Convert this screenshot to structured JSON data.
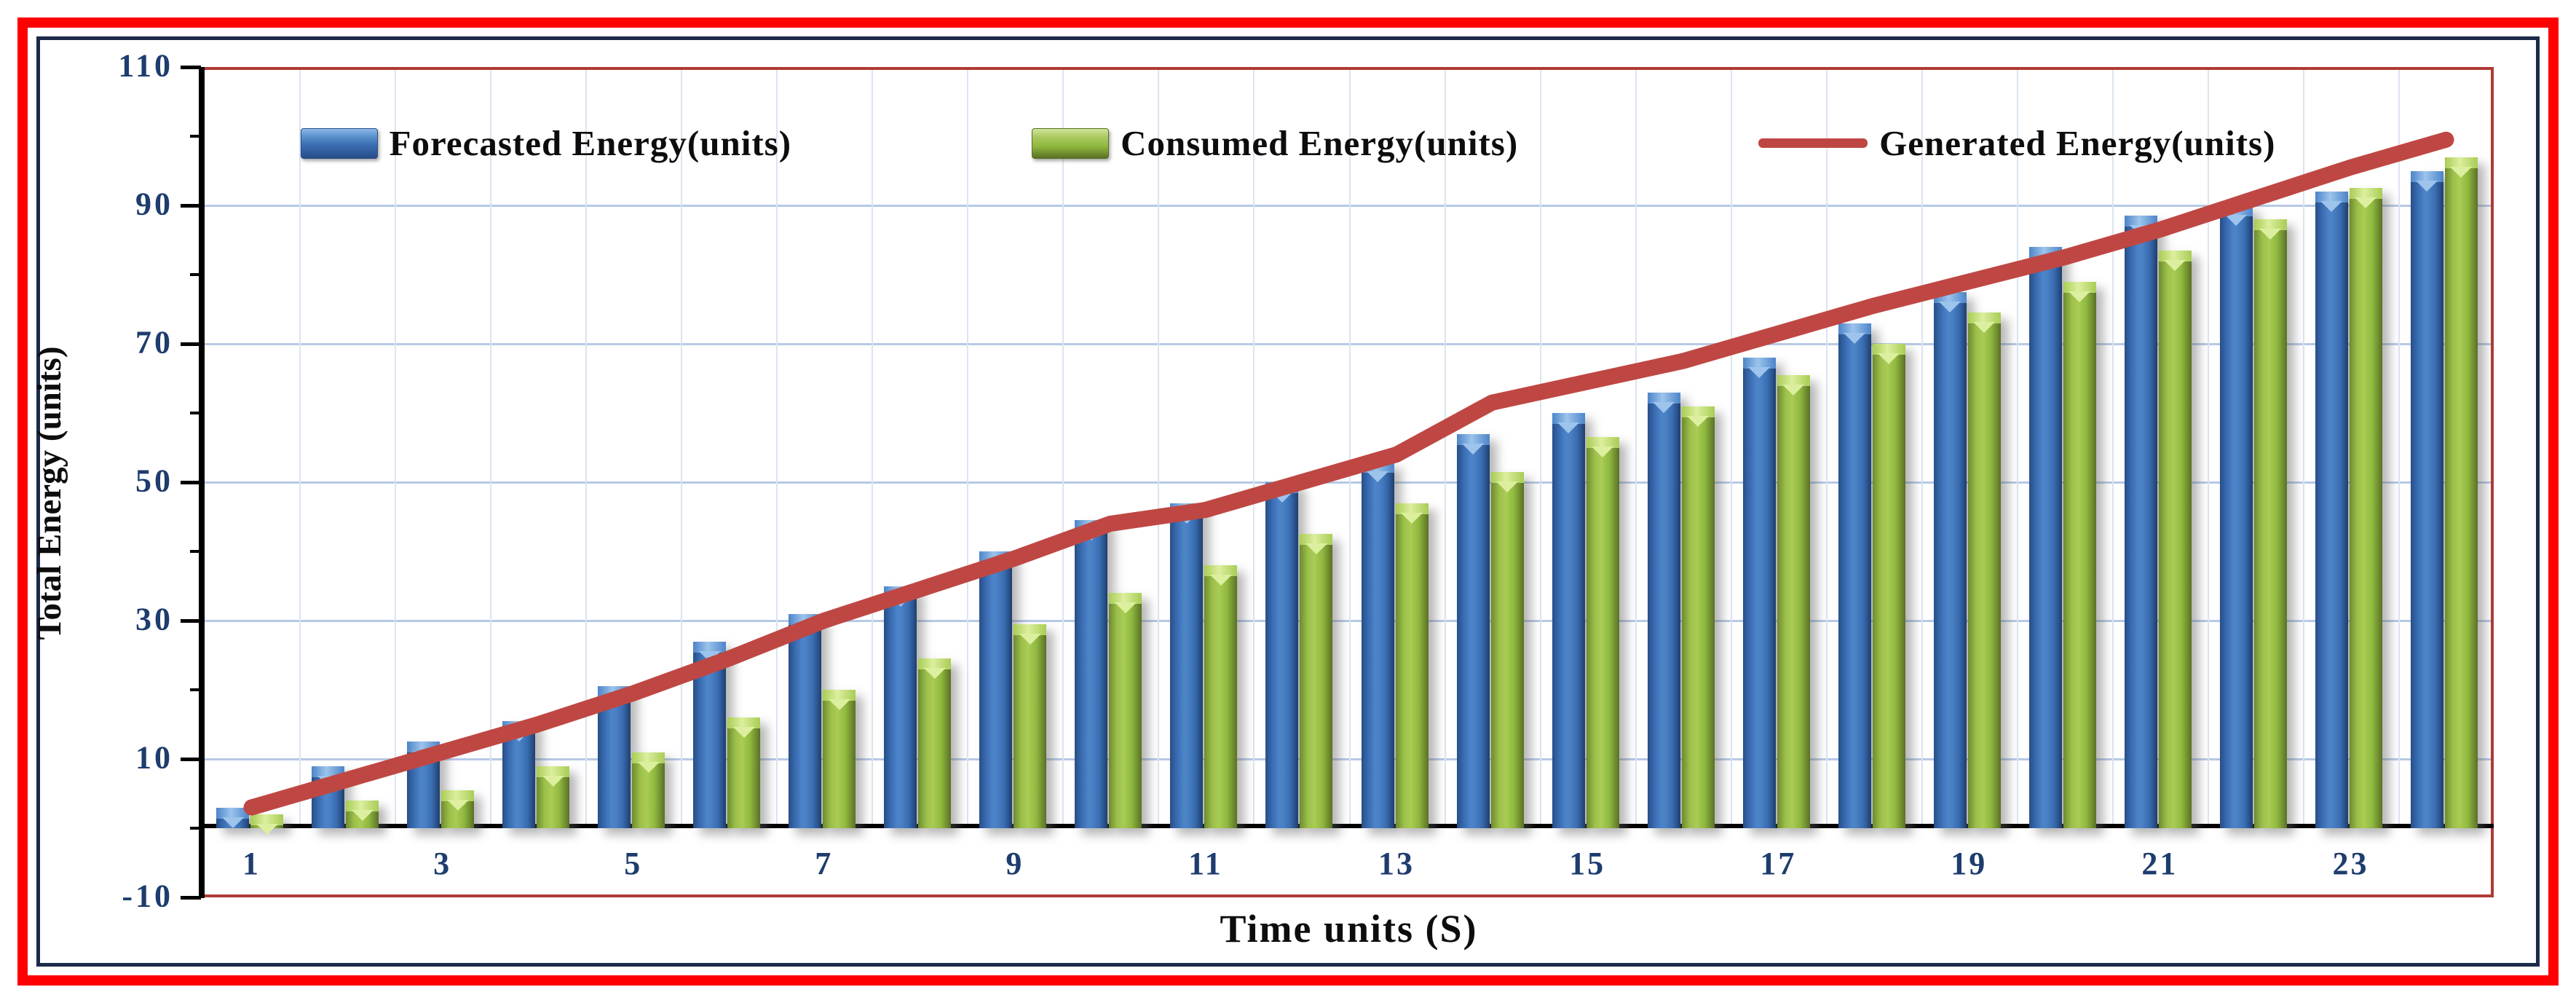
{
  "legend": {
    "items": [
      {
        "label": "Forecasted Energy(units)",
        "type": "bar",
        "color": "#3a6db3"
      },
      {
        "label": "Consumed Energy(units)",
        "type": "bar",
        "color": "#8fb83e"
      },
      {
        "label": "Generated Energy(units)",
        "type": "line",
        "color": "#bf4743"
      }
    ]
  },
  "axes": {
    "y": {
      "title": "Total Energy (units)",
      "min": -10,
      "max": 110,
      "major_step": 20,
      "minor_step": 10,
      "tick_labels": [
        "110",
        "90",
        "70",
        "50",
        "30",
        "10",
        "-10"
      ]
    },
    "x": {
      "title": "Time units (S)",
      "tick_labels": [
        "1",
        "3",
        "5",
        "7",
        "9",
        "11",
        "13",
        "15",
        "17",
        "19",
        "21",
        "23"
      ]
    }
  },
  "colors": {
    "outer_border": "#fe0000",
    "inner_border": "#1c2b4a",
    "plot_border": "#b03a37",
    "gridline": "#b7c9e5",
    "tick_text": "#1e3c6e",
    "bar_blue": "#3a6db3",
    "bar_green": "#8fb83e",
    "line_red": "#bf4743"
  },
  "chart_data": {
    "type": "bar+line",
    "categories": [
      1,
      2,
      3,
      4,
      5,
      6,
      7,
      8,
      9,
      10,
      11,
      12,
      13,
      14,
      15,
      16,
      17,
      18,
      19,
      20,
      21,
      22,
      23,
      24
    ],
    "series": [
      {
        "name": "Forecasted Energy(units)",
        "type": "bar",
        "color": "#3a6db3",
        "values": [
          3,
          9,
          12.5,
          15.5,
          20.5,
          27,
          31,
          35,
          40,
          44.5,
          47,
          50,
          53,
          57,
          60,
          63,
          68,
          73,
          77.5,
          84,
          88.5,
          90,
          92,
          95
        ]
      },
      {
        "name": "Consumed Energy(units)",
        "type": "bar",
        "color": "#8fb83e",
        "values": [
          2,
          4,
          5.5,
          9,
          11,
          16,
          20,
          24.5,
          29.5,
          34,
          38,
          42.5,
          47,
          51.5,
          56.5,
          61,
          65.5,
          70,
          74.5,
          79,
          83.5,
          88,
          92.5,
          97
        ]
      },
      {
        "name": "Generated Energy(units)",
        "type": "line",
        "color": "#bf4743",
        "values": [
          3,
          7,
          11,
          15,
          19.5,
          24.5,
          30,
          34.5,
          39,
          44,
          46,
          50,
          54,
          61.5,
          64.5,
          67.5,
          71.5,
          75.5,
          79,
          82.5,
          86.5,
          91,
          95.5,
          99.5
        ]
      }
    ],
    "ylim": [
      -10,
      110
    ],
    "grid": true,
    "legend_position": "top-center"
  }
}
